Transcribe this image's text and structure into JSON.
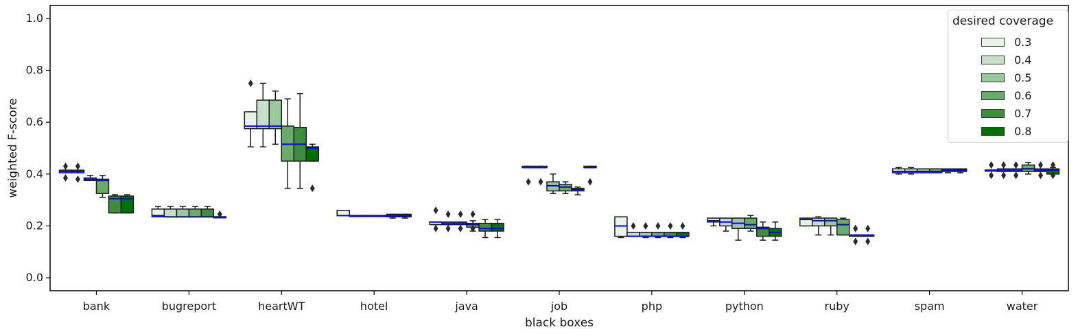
{
  "chart_data": {
    "type": "box",
    "xlabel": "black boxes",
    "ylabel": "weighted F-score",
    "ylim": [
      -0.05,
      1.05
    ],
    "yticks": [
      "0.0",
      "0.2",
      "0.4",
      "0.6",
      "0.8",
      "1.0"
    ],
    "grid": false,
    "legend": {
      "title": "desired coverage",
      "placement": "top-right"
    },
    "median_color": "#0000ff",
    "categories": [
      "bank",
      "bugreport",
      "heartWT",
      "hotel",
      "java",
      "job",
      "php",
      "python",
      "ruby",
      "spam",
      "water"
    ],
    "series": [
      {
        "name": "0.3",
        "color": "#e8f4e8",
        "boxes": [
          {
            "q1": 0.405,
            "med": 0.41,
            "q3": 0.415,
            "wlo": 0.405,
            "whi": 0.415,
            "fliers": [
              0.43,
              0.385
            ]
          },
          {
            "q1": 0.235,
            "med": 0.24,
            "q3": 0.265,
            "wlo": 0.235,
            "whi": 0.275,
            "fliers": []
          },
          {
            "q1": 0.575,
            "med": 0.585,
            "q3": 0.64,
            "wlo": 0.505,
            "whi": 0.64,
            "fliers": [
              0.75
            ]
          },
          {
            "q1": 0.24,
            "med": 0.24,
            "q3": 0.26,
            "wlo": 0.24,
            "whi": 0.26,
            "fliers": []
          },
          {
            "q1": 0.205,
            "med": 0.215,
            "q3": 0.215,
            "wlo": 0.205,
            "whi": 0.215,
            "fliers": [
              0.26,
              0.19
            ]
          },
          {
            "q1": 0.425,
            "med": 0.425,
            "q3": 0.43,
            "wlo": 0.425,
            "whi": 0.43,
            "fliers": [
              0.37
            ]
          },
          {
            "q1": 0.16,
            "med": 0.2,
            "q3": 0.235,
            "wlo": 0.155,
            "whi": 0.235,
            "fliers": []
          },
          {
            "q1": 0.215,
            "med": 0.22,
            "q3": 0.23,
            "wlo": 0.2,
            "whi": 0.23,
            "fliers": []
          },
          {
            "q1": 0.2,
            "med": 0.225,
            "q3": 0.23,
            "wlo": 0.2,
            "whi": 0.23,
            "fliers": []
          },
          {
            "q1": 0.405,
            "med": 0.41,
            "q3": 0.42,
            "wlo": 0.4,
            "whi": 0.425,
            "fliers": []
          },
          {
            "q1": 0.415,
            "med": 0.415,
            "q3": 0.415,
            "wlo": 0.415,
            "whi": 0.415,
            "fliers": [
              0.435,
              0.395
            ]
          }
        ]
      },
      {
        "name": "0.4",
        "color": "#c6dfc6",
        "boxes": [
          {
            "q1": 0.405,
            "med": 0.41,
            "q3": 0.415,
            "wlo": 0.405,
            "whi": 0.415,
            "fliers": [
              0.43,
              0.38
            ]
          },
          {
            "q1": 0.235,
            "med": 0.235,
            "q3": 0.265,
            "wlo": 0.235,
            "whi": 0.275,
            "fliers": []
          },
          {
            "q1": 0.575,
            "med": 0.585,
            "q3": 0.685,
            "wlo": 0.505,
            "whi": 0.75,
            "fliers": []
          },
          {
            "q1": 0.24,
            "med": 0.24,
            "q3": 0.24,
            "wlo": 0.24,
            "whi": 0.24,
            "fliers": []
          },
          {
            "q1": 0.205,
            "med": 0.21,
            "q3": 0.215,
            "wlo": 0.205,
            "whi": 0.215,
            "fliers": [
              0.245,
              0.19
            ]
          },
          {
            "q1": 0.425,
            "med": 0.425,
            "q3": 0.43,
            "wlo": 0.425,
            "whi": 0.43,
            "fliers": [
              0.37
            ]
          },
          {
            "q1": 0.16,
            "med": 0.16,
            "q3": 0.175,
            "wlo": 0.16,
            "whi": 0.175,
            "fliers": [
              0.2
            ]
          },
          {
            "q1": 0.2,
            "med": 0.215,
            "q3": 0.23,
            "wlo": 0.18,
            "whi": 0.23,
            "fliers": []
          },
          {
            "q1": 0.2,
            "med": 0.22,
            "q3": 0.23,
            "wlo": 0.165,
            "whi": 0.235,
            "fliers": []
          },
          {
            "q1": 0.405,
            "med": 0.41,
            "q3": 0.42,
            "wlo": 0.4,
            "whi": 0.425,
            "fliers": []
          },
          {
            "q1": 0.41,
            "med": 0.415,
            "q3": 0.42,
            "wlo": 0.41,
            "whi": 0.42,
            "fliers": [
              0.435,
              0.395
            ]
          }
        ]
      },
      {
        "name": "0.5",
        "color": "#9bc99b",
        "boxes": [
          {
            "q1": 0.375,
            "med": 0.38,
            "q3": 0.385,
            "wlo": 0.375,
            "whi": 0.395,
            "fliers": []
          },
          {
            "q1": 0.235,
            "med": 0.235,
            "q3": 0.265,
            "wlo": 0.235,
            "whi": 0.275,
            "fliers": []
          },
          {
            "q1": 0.575,
            "med": 0.585,
            "q3": 0.685,
            "wlo": 0.515,
            "whi": 0.72,
            "fliers": []
          },
          {
            "q1": 0.24,
            "med": 0.24,
            "q3": 0.24,
            "wlo": 0.24,
            "whi": 0.24,
            "fliers": []
          },
          {
            "q1": 0.205,
            "med": 0.21,
            "q3": 0.215,
            "wlo": 0.205,
            "whi": 0.215,
            "fliers": [
              0.245,
              0.19
            ]
          },
          {
            "q1": 0.335,
            "med": 0.355,
            "q3": 0.37,
            "wlo": 0.325,
            "whi": 0.4,
            "fliers": []
          },
          {
            "q1": 0.16,
            "med": 0.16,
            "q3": 0.175,
            "wlo": 0.155,
            "whi": 0.175,
            "fliers": [
              0.2
            ]
          },
          {
            "q1": 0.19,
            "med": 0.21,
            "q3": 0.23,
            "wlo": 0.145,
            "whi": 0.23,
            "fliers": []
          },
          {
            "q1": 0.2,
            "med": 0.22,
            "q3": 0.23,
            "wlo": 0.165,
            "whi": 0.23,
            "fliers": []
          },
          {
            "q1": 0.405,
            "med": 0.41,
            "q3": 0.42,
            "wlo": 0.405,
            "whi": 0.42,
            "fliers": []
          },
          {
            "q1": 0.41,
            "med": 0.415,
            "q3": 0.42,
            "wlo": 0.41,
            "whi": 0.42,
            "fliers": [
              0.435,
              0.395
            ]
          }
        ]
      },
      {
        "name": "0.6",
        "color": "#6aaa6a",
        "boxes": [
          {
            "q1": 0.325,
            "med": 0.375,
            "q3": 0.38,
            "wlo": 0.31,
            "whi": 0.395,
            "fliers": []
          },
          {
            "q1": 0.235,
            "med": 0.235,
            "q3": 0.265,
            "wlo": 0.235,
            "whi": 0.275,
            "fliers": []
          },
          {
            "q1": 0.45,
            "med": 0.515,
            "q3": 0.585,
            "wlo": 0.345,
            "whi": 0.69,
            "fliers": []
          },
          {
            "q1": 0.24,
            "med": 0.24,
            "q3": 0.24,
            "wlo": 0.24,
            "whi": 0.24,
            "fliers": []
          },
          {
            "q1": 0.195,
            "med": 0.205,
            "q3": 0.21,
            "wlo": 0.18,
            "whi": 0.22,
            "fliers": [
              0.245,
              0.19
            ]
          },
          {
            "q1": 0.335,
            "med": 0.35,
            "q3": 0.36,
            "wlo": 0.325,
            "whi": 0.37,
            "fliers": []
          },
          {
            "q1": 0.16,
            "med": 0.16,
            "q3": 0.175,
            "wlo": 0.155,
            "whi": 0.175,
            "fliers": [
              0.2
            ]
          },
          {
            "q1": 0.19,
            "med": 0.205,
            "q3": 0.23,
            "wlo": 0.18,
            "whi": 0.24,
            "fliers": []
          },
          {
            "q1": 0.165,
            "med": 0.205,
            "q3": 0.225,
            "wlo": 0.165,
            "whi": 0.23,
            "fliers": []
          },
          {
            "q1": 0.405,
            "med": 0.41,
            "q3": 0.42,
            "wlo": 0.405,
            "whi": 0.42,
            "fliers": []
          },
          {
            "q1": 0.41,
            "med": 0.42,
            "q3": 0.435,
            "wlo": 0.4,
            "whi": 0.445,
            "fliers": []
          }
        ]
      },
      {
        "name": "0.7",
        "color": "#3e8e3e",
        "boxes": [
          {
            "q1": 0.25,
            "med": 0.305,
            "q3": 0.315,
            "wlo": 0.25,
            "whi": 0.32,
            "fliers": []
          },
          {
            "q1": 0.235,
            "med": 0.235,
            "q3": 0.265,
            "wlo": 0.235,
            "whi": 0.275,
            "fliers": []
          },
          {
            "q1": 0.45,
            "med": 0.515,
            "q3": 0.58,
            "wlo": 0.345,
            "whi": 0.71,
            "fliers": []
          },
          {
            "q1": 0.235,
            "med": 0.24,
            "q3": 0.245,
            "wlo": 0.23,
            "whi": 0.245,
            "fliers": []
          },
          {
            "q1": 0.18,
            "med": 0.19,
            "q3": 0.21,
            "wlo": 0.155,
            "whi": 0.225,
            "fliers": []
          },
          {
            "q1": 0.335,
            "med": 0.34,
            "q3": 0.345,
            "wlo": 0.32,
            "whi": 0.35,
            "fliers": []
          },
          {
            "q1": 0.16,
            "med": 0.16,
            "q3": 0.175,
            "wlo": 0.155,
            "whi": 0.175,
            "fliers": [
              0.2
            ]
          },
          {
            "q1": 0.16,
            "med": 0.19,
            "q3": 0.195,
            "wlo": 0.145,
            "whi": 0.215,
            "fliers": []
          },
          {
            "q1": 0.16,
            "med": 0.165,
            "q3": 0.165,
            "wlo": 0.16,
            "whi": 0.165,
            "fliers": [
              0.19,
              0.14
            ]
          },
          {
            "q1": 0.41,
            "med": 0.415,
            "q3": 0.42,
            "wlo": 0.405,
            "whi": 0.42,
            "fliers": []
          },
          {
            "q1": 0.41,
            "med": 0.415,
            "q3": 0.42,
            "wlo": 0.41,
            "whi": 0.42,
            "fliers": [
              0.435,
              0.395
            ]
          }
        ]
      },
      {
        "name": "0.8",
        "color": "#007000",
        "boxes": [
          {
            "q1": 0.25,
            "med": 0.305,
            "q3": 0.315,
            "wlo": 0.25,
            "whi": 0.32,
            "fliers": []
          },
          {
            "q1": 0.235,
            "med": 0.235,
            "q3": 0.235,
            "wlo": 0.235,
            "whi": 0.235,
            "fliers": [
              0.245
            ]
          },
          {
            "q1": 0.45,
            "med": 0.5,
            "q3": 0.505,
            "wlo": 0.45,
            "whi": 0.515,
            "fliers": [
              0.345
            ]
          },
          {
            "q1": 0.235,
            "med": 0.24,
            "q3": 0.245,
            "wlo": 0.23,
            "whi": 0.245,
            "fliers": []
          },
          {
            "q1": 0.18,
            "med": 0.19,
            "q3": 0.21,
            "wlo": 0.155,
            "whi": 0.225,
            "fliers": []
          },
          {
            "q1": 0.425,
            "med": 0.425,
            "q3": 0.43,
            "wlo": 0.425,
            "whi": 0.43,
            "fliers": [
              0.37
            ]
          },
          {
            "q1": 0.16,
            "med": 0.16,
            "q3": 0.175,
            "wlo": 0.155,
            "whi": 0.175,
            "fliers": [
              0.2
            ]
          },
          {
            "q1": 0.16,
            "med": 0.175,
            "q3": 0.19,
            "wlo": 0.145,
            "whi": 0.215,
            "fliers": []
          },
          {
            "q1": 0.16,
            "med": 0.165,
            "q3": 0.165,
            "wlo": 0.16,
            "whi": 0.165,
            "fliers": [
              0.19,
              0.14
            ]
          },
          {
            "q1": 0.41,
            "med": 0.415,
            "q3": 0.42,
            "wlo": 0.405,
            "whi": 0.42,
            "fliers": []
          },
          {
            "q1": 0.4,
            "med": 0.415,
            "q3": 0.42,
            "wlo": 0.4,
            "whi": 0.425,
            "fliers": [
              0.435,
              0.395
            ]
          }
        ]
      }
    ]
  }
}
